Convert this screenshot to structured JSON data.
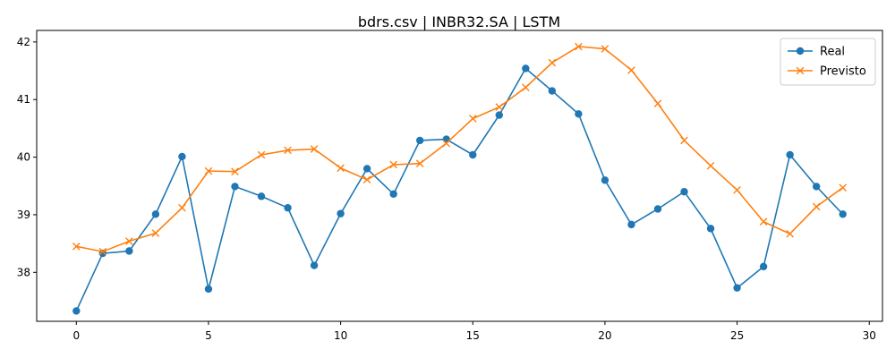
{
  "chart_data": {
    "type": "line",
    "title": "bdrs.csv | INBR32.SA | LSTM",
    "xlabel": "",
    "ylabel": "",
    "xlim": [
      -1.5,
      30.5
    ],
    "ylim": [
      37.15,
      42.2
    ],
    "xticks": [
      0,
      5,
      10,
      15,
      20,
      25,
      30
    ],
    "yticks": [
      38,
      39,
      40,
      41,
      42
    ],
    "grid": false,
    "legend_position": "top-right",
    "x": [
      0,
      1,
      2,
      3,
      4,
      5,
      6,
      7,
      8,
      9,
      10,
      11,
      12,
      13,
      14,
      15,
      16,
      17,
      18,
      19,
      20,
      21,
      22,
      23,
      24,
      25,
      26,
      27,
      28,
      29
    ],
    "series": [
      {
        "name": "Real",
        "color": "#1f77b4",
        "marker": "circle",
        "values": [
          37.33,
          38.33,
          38.37,
          39.01,
          40.01,
          37.71,
          39.49,
          39.32,
          39.12,
          38.12,
          39.02,
          39.8,
          39.36,
          40.29,
          40.31,
          40.04,
          40.73,
          41.54,
          41.15,
          40.75,
          39.6,
          38.83,
          39.1,
          39.4,
          38.76,
          37.73,
          38.1,
          40.04,
          39.49,
          39.01
        ]
      },
      {
        "name": "Previsto",
        "color": "#ff7f0e",
        "marker": "x",
        "values": [
          38.45,
          38.36,
          38.54,
          38.68,
          39.12,
          39.76,
          39.75,
          40.04,
          40.12,
          40.14,
          39.81,
          39.61,
          39.87,
          39.89,
          40.24,
          40.67,
          40.87,
          41.21,
          41.64,
          41.92,
          41.88,
          41.51,
          40.93,
          40.29,
          39.85,
          39.43,
          38.88,
          38.67,
          39.14,
          39.47
        ]
      }
    ]
  }
}
